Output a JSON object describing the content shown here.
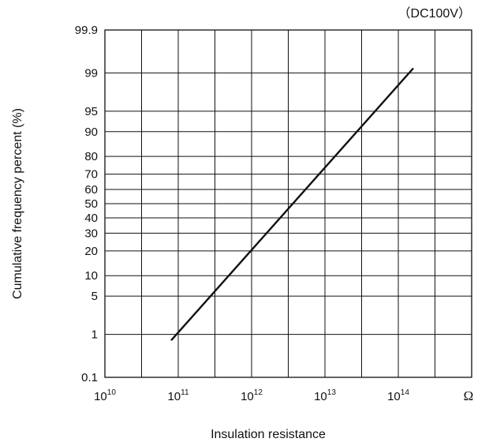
{
  "chart_data": {
    "type": "line",
    "annotation": "（DC100V）",
    "xlabel": "Insulation resistance",
    "ylabel": "Cumulative frequency percent (%)",
    "x_unit": "Ω",
    "x_scale": "log",
    "y_scale": "probability",
    "xlim": [
      10000000000.0,
      1000000000000000.0
    ],
    "ylim": [
      0.1,
      99.9
    ],
    "x_ticks": [
      {
        "base": "10",
        "exp": "10",
        "value": 10000000000.0
      },
      {
        "base": "10",
        "exp": "11",
        "value": 100000000000.0
      },
      {
        "base": "10",
        "exp": "12",
        "value": 1000000000000.0
      },
      {
        "base": "10",
        "exp": "13",
        "value": 10000000000000.0
      },
      {
        "base": "10",
        "exp": "14",
        "value": 100000000000000.0
      }
    ],
    "y_ticks": [
      {
        "label": "99.9",
        "value": 99.9
      },
      {
        "label": "99",
        "value": 99
      },
      {
        "label": "95",
        "value": 95
      },
      {
        "label": "90",
        "value": 90
      },
      {
        "label": "80",
        "value": 80
      },
      {
        "label": "70",
        "value": 70
      },
      {
        "label": "60",
        "value": 60
      },
      {
        "label": "50",
        "value": 50
      },
      {
        "label": "40",
        "value": 40
      },
      {
        "label": "30",
        "value": 30
      },
      {
        "label": "20",
        "value": 20
      },
      {
        "label": "10",
        "value": 10
      },
      {
        "label": "5",
        "value": 5
      },
      {
        "label": "1",
        "value": 1
      },
      {
        "label": "0.1",
        "value": 0.1
      }
    ],
    "grid": true,
    "series": [
      {
        "x": [
          80000000000.0,
          160000000000000.0
        ],
        "y": [
          0.75,
          99.2
        ]
      }
    ]
  }
}
